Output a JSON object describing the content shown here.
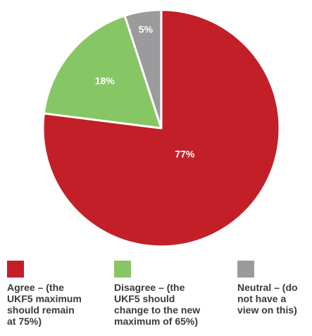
{
  "chart_data": {
    "type": "pie",
    "slices": [
      {
        "label": "Agree – (the UKF5 maximum should remain at 75%)",
        "value": 77,
        "value_label": "77%",
        "color": "#c21f28"
      },
      {
        "label": "Disagree – (the UKF5 should change to the new maximum of 65%)",
        "value": 18,
        "value_label": "18%",
        "color": "#86c664"
      },
      {
        "label": "Neutral – (do not have a view on this)",
        "value": 5,
        "value_label": "5%",
        "color": "#9b9b9d"
      }
    ],
    "legend_position": "bottom"
  },
  "legend": [
    {
      "text": "Agree – (the\nUKF5 maximum\nshould remain\nat 75%)",
      "color": "#c21f28"
    },
    {
      "text": "Disagree – (the\nUKF5 should\nchange to the new\nmaximum of 65%)",
      "color": "#86c664"
    },
    {
      "text": "Neutral – (do\nnot have a\nview on this)",
      "color": "#9b9b9d"
    }
  ]
}
